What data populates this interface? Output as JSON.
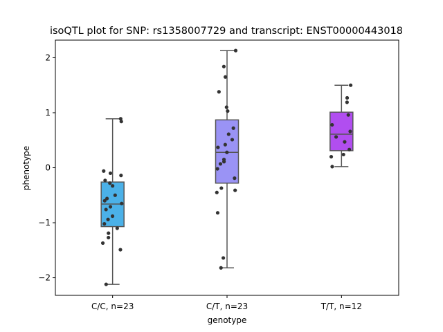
{
  "chart_data": {
    "type": "box",
    "title": "isoQTL plot for SNP: rs1358007729 and transcript: ENST00000443018",
    "xlabel": "genotype",
    "ylabel": "phenotype",
    "ylim": [
      -2.32,
      2.32
    ],
    "yticks": [
      -2,
      -1,
      0,
      1,
      2
    ],
    "ytick_labels": [
      "−2",
      "−1",
      "0",
      "1",
      "2"
    ],
    "grid": false,
    "colors": {
      "box_outline": "#555555",
      "points": "#333333",
      "frame": "#000000"
    },
    "categories": [
      "C/C, n=23",
      "C/T, n=23",
      "T/T, n=12"
    ],
    "boxes": [
      {
        "label": "C/C, n=23",
        "color": "#4bb1e8",
        "whislo": -2.12,
        "q1": -1.07,
        "median": -0.66,
        "q3": -0.26,
        "whishi": 0.89,
        "points": [
          0.89,
          0.84,
          -0.06,
          -0.1,
          -0.14,
          -0.23,
          -0.28,
          -0.33,
          -0.5,
          -0.56,
          -0.6,
          -0.65,
          -0.71,
          -0.76,
          -0.88,
          -0.94,
          -1.02,
          -1.1,
          -1.19,
          -1.27,
          -1.37,
          -1.49,
          -2.12
        ]
      },
      {
        "label": "C/T, n=23",
        "color": "#9a93f5",
        "whislo": -1.82,
        "q1": -0.28,
        "median": 0.28,
        "q3": 0.87,
        "whishi": 2.13,
        "points": [
          2.13,
          1.84,
          1.65,
          1.38,
          1.1,
          1.03,
          0.72,
          0.61,
          0.51,
          0.42,
          0.37,
          0.28,
          0.15,
          0.11,
          0.07,
          -0.02,
          -0.19,
          -0.37,
          -0.41,
          -0.45,
          -0.82,
          -1.64,
          -1.82
        ]
      },
      {
        "label": "T/T, n=12",
        "color": "#b14ef0",
        "whislo": 0.02,
        "q1": 0.31,
        "median": 0.61,
        "q3": 1.01,
        "whishi": 1.5,
        "points": [
          1.5,
          1.27,
          1.19,
          0.96,
          0.78,
          0.66,
          0.56,
          0.47,
          0.33,
          0.24,
          0.2,
          0.02
        ]
      }
    ]
  }
}
